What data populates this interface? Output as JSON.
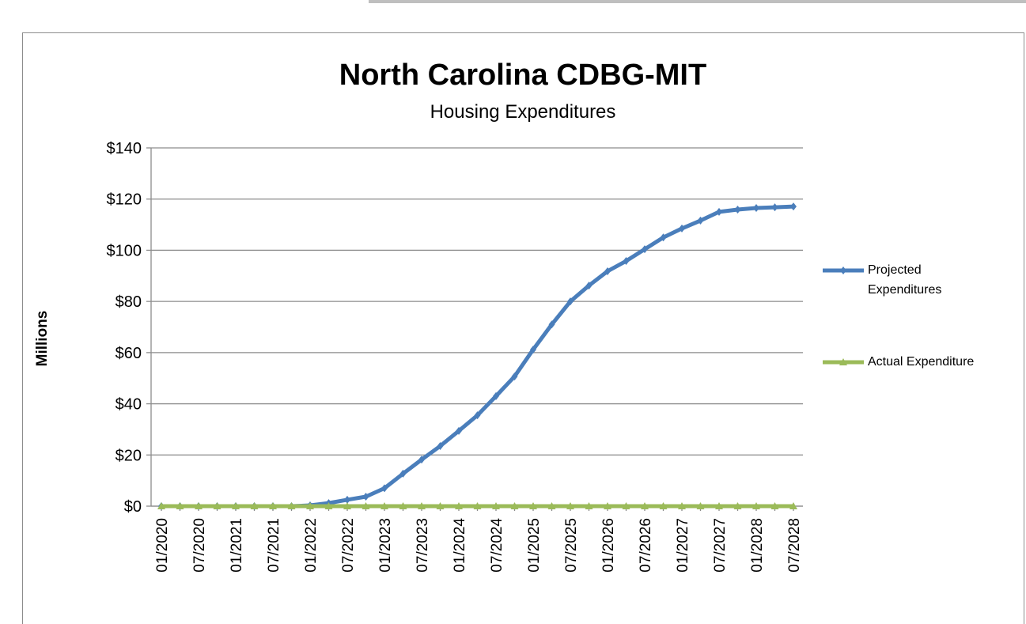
{
  "chart_data": {
    "type": "line",
    "title": "North Carolina CDBG-MIT",
    "subtitle": "Housing Expenditures",
    "y_label": "Millions",
    "categories": [
      "01/2020",
      null,
      "07/2020",
      null,
      "01/2021",
      null,
      "07/2021",
      null,
      "01/2022",
      null,
      "07/2022",
      null,
      "01/2023",
      null,
      "07/2023",
      null,
      "01/2024",
      null,
      "07/2024",
      null,
      "01/2025",
      null,
      "07/2025",
      null,
      "01/2026",
      null,
      "07/2026",
      null,
      "01/2027",
      null,
      "07/2027",
      null,
      "01/2028",
      null,
      "07/2028"
    ],
    "series": [
      {
        "name": "Projected Expenditures",
        "color": "#4a7ebb",
        "marker": "diamond",
        "values": [
          0,
          0,
          0,
          0,
          0,
          0,
          0,
          0,
          0.3,
          1.2,
          2.5,
          3.7,
          7,
          12.7,
          18.2,
          23.5,
          29.4,
          35.5,
          43,
          50.7,
          61.2,
          71,
          80,
          86.2,
          91.8,
          95.8,
          100.4,
          105,
          108.5,
          111.6,
          115,
          115.9,
          116.5,
          116.8,
          117.1
        ]
      },
      {
        "name": "Actual Expenditure",
        "color": "#9bbb59",
        "marker": "triangle",
        "values": [
          0,
          0,
          0,
          0,
          0,
          0,
          0,
          0,
          0,
          0,
          0,
          0,
          0,
          0,
          0,
          0,
          0,
          0,
          0,
          0,
          0,
          0,
          0,
          0,
          0,
          0,
          0,
          0,
          0,
          0,
          0,
          0,
          0,
          0,
          0
        ]
      }
    ],
    "ylim": [
      0,
      140
    ],
    "yticks": [
      {
        "value": 0,
        "label": "$0"
      },
      {
        "value": 20,
        "label": "$20"
      },
      {
        "value": 40,
        "label": "$40"
      },
      {
        "value": 60,
        "label": "$60"
      },
      {
        "value": 80,
        "label": "$80"
      },
      {
        "value": 100,
        "label": "$100"
      },
      {
        "value": 120,
        "label": "$120"
      },
      {
        "value": 140,
        "label": "$140"
      }
    ],
    "grid": true,
    "legend": "right"
  }
}
